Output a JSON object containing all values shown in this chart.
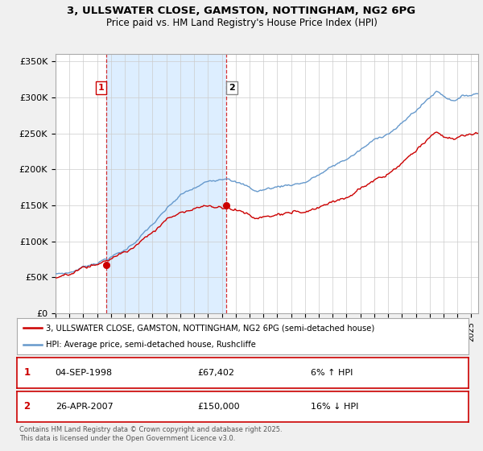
{
  "title_line1": "3, ULLSWATER CLOSE, GAMSTON, NOTTINGHAM, NG2 6PG",
  "title_line2": "Price paid vs. HM Land Registry's House Price Index (HPI)",
  "background_color": "#f0f0f0",
  "plot_bg_color": "#ffffff",
  "red_line_label": "3, ULLSWATER CLOSE, GAMSTON, NOTTINGHAM, NG2 6PG (semi-detached house)",
  "blue_line_label": "HPI: Average price, semi-detached house, Rushcliffe",
  "sale1_date": "04-SEP-1998",
  "sale1_price": "£67,402",
  "sale1_hpi": "6% ↑ HPI",
  "sale2_date": "26-APR-2007",
  "sale2_price": "£150,000",
  "sale2_hpi": "16% ↓ HPI",
  "footnote": "Contains HM Land Registry data © Crown copyright and database right 2025.\nThis data is licensed under the Open Government Licence v3.0.",
  "ylim": [
    0,
    360000
  ],
  "yticks": [
    0,
    50000,
    100000,
    150000,
    200000,
    250000,
    300000,
    350000
  ],
  "ytick_labels": [
    "£0",
    "£50K",
    "£100K",
    "£150K",
    "£200K",
    "£250K",
    "£300K",
    "£350K"
  ],
  "sale1_x": 1998.67,
  "sale1_y": 67402,
  "sale2_x": 2007.32,
  "sale2_y": 150000,
  "red_color": "#cc0000",
  "blue_color": "#6699cc",
  "shade_color": "#ddeeff",
  "vline_color": "#cc0000",
  "dot_color": "#cc0000",
  "xlim_start": 1995,
  "xlim_end": 2025.5
}
